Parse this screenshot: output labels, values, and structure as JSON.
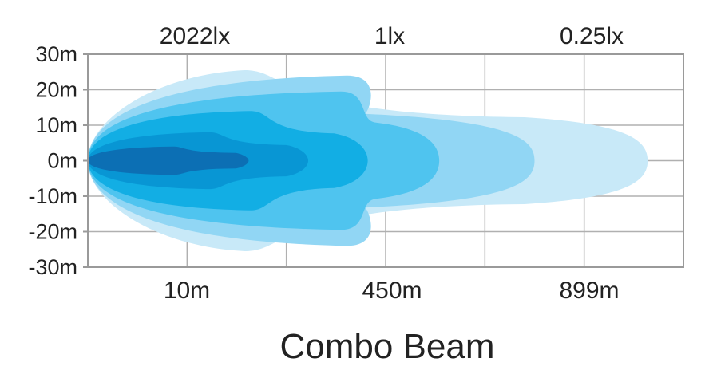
{
  "chart_data": {
    "type": "area",
    "title": "Combo Beam",
    "top_labels": [
      "2022lx",
      "1lx",
      "0.25lx"
    ],
    "bottom_labels": [
      "10m",
      "450m",
      "899m"
    ],
    "y_ticks": [
      "30m",
      "20m",
      "10m",
      "0m",
      "-10m",
      "-20m",
      "-30m"
    ],
    "ylim": [
      -30,
      30
    ],
    "grid": true,
    "series": [
      {
        "reach_fraction": 0.94,
        "half_width_m": 25.5,
        "color": "#c8e9f8"
      },
      {
        "reach_fraction": 0.75,
        "half_width_m": 24.0,
        "color": "#91d6f4"
      },
      {
        "reach_fraction": 0.59,
        "half_width_m": 19.5,
        "color": "#4fc4ef"
      },
      {
        "reach_fraction": 0.47,
        "half_width_m": 14.0,
        "color": "#12aee4"
      },
      {
        "reach_fraction": 0.37,
        "half_width_m": 8.0,
        "color": "#0896d4"
      },
      {
        "reach_fraction": 0.27,
        "half_width_m": 4.0,
        "color": "#0c6fb4"
      }
    ]
  }
}
